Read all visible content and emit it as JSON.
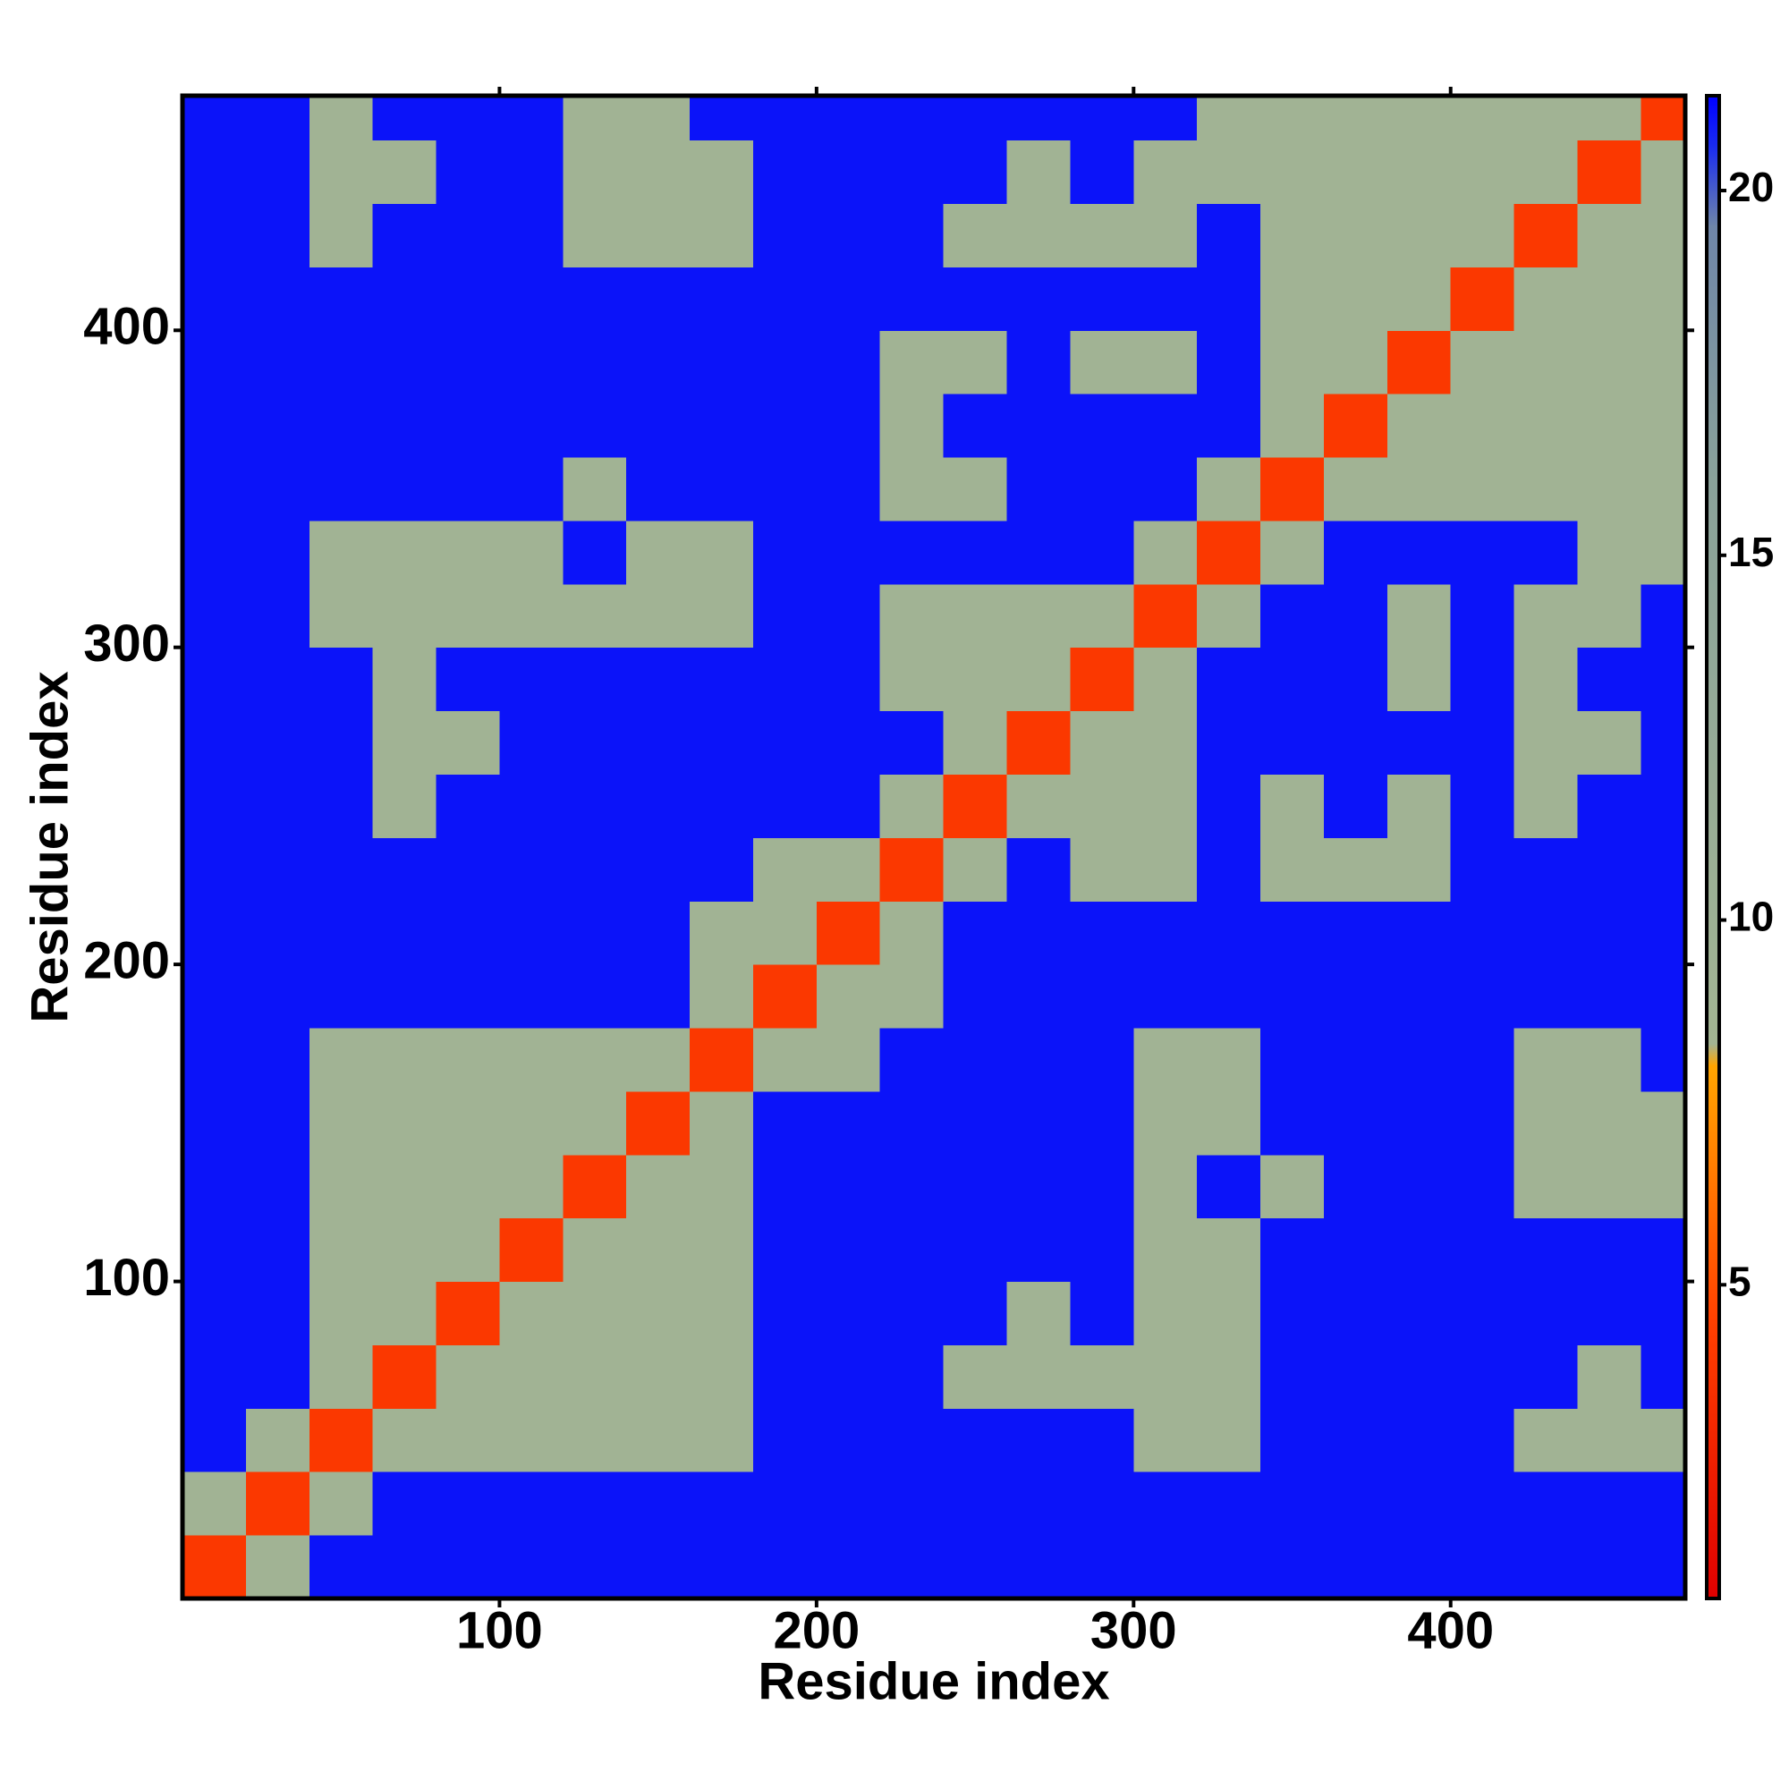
{
  "chart_data": {
    "type": "heatmap",
    "xlabel": "Residue index",
    "ylabel": "Residue index",
    "x_edges": [
      0,
      20,
      40,
      60,
      80,
      100,
      120,
      140,
      160,
      180,
      200,
      220,
      240,
      260,
      280,
      300,
      320,
      340,
      360,
      380,
      400,
      420,
      440,
      460,
      474
    ],
    "y_edges": [
      0,
      20,
      40,
      60,
      80,
      100,
      120,
      140,
      160,
      180,
      200,
      220,
      240,
      260,
      280,
      300,
      320,
      340,
      360,
      380,
      400,
      420,
      440,
      460,
      474
    ],
    "values": [
      [
        4,
        9,
        21,
        21,
        21,
        21,
        21,
        21,
        21,
        21,
        21,
        21,
        21,
        21,
        21,
        21,
        21,
        21,
        21,
        21,
        21,
        21,
        21,
        21
      ],
      [
        9,
        4,
        9,
        21,
        21,
        21,
        21,
        21,
        21,
        21,
        21,
        21,
        21,
        21,
        21,
        21,
        21,
        21,
        21,
        21,
        21,
        21,
        21,
        21
      ],
      [
        21,
        9,
        4,
        9,
        9,
        9,
        9,
        9,
        9,
        21,
        21,
        21,
        21,
        21,
        21,
        9,
        9,
        21,
        21,
        21,
        21,
        9,
        9,
        9
      ],
      [
        21,
        21,
        9,
        4,
        9,
        9,
        9,
        9,
        9,
        21,
        21,
        21,
        9,
        9,
        9,
        9,
        9,
        21,
        21,
        21,
        21,
        21,
        9,
        21
      ],
      [
        21,
        21,
        9,
        9,
        4,
        9,
        9,
        9,
        9,
        21,
        21,
        21,
        21,
        9,
        21,
        9,
        9,
        21,
        21,
        21,
        21,
        21,
        21,
        21
      ],
      [
        21,
        21,
        9,
        9,
        9,
        4,
        9,
        9,
        9,
        21,
        21,
        21,
        21,
        21,
        21,
        9,
        9,
        21,
        21,
        21,
        21,
        21,
        21,
        21
      ],
      [
        21,
        21,
        9,
        9,
        9,
        9,
        4,
        9,
        9,
        21,
        21,
        21,
        21,
        21,
        21,
        9,
        21,
        9,
        21,
        21,
        21,
        9,
        9,
        9
      ],
      [
        21,
        21,
        9,
        9,
        9,
        9,
        9,
        4,
        9,
        21,
        21,
        21,
        21,
        21,
        21,
        9,
        9,
        21,
        21,
        21,
        21,
        9,
        9,
        9
      ],
      [
        21,
        21,
        9,
        9,
        9,
        9,
        9,
        9,
        4,
        9,
        9,
        21,
        21,
        21,
        21,
        9,
        9,
        21,
        21,
        21,
        21,
        9,
        9,
        21
      ],
      [
        21,
        21,
        21,
        21,
        21,
        21,
        21,
        21,
        9,
        4,
        9,
        9,
        21,
        21,
        21,
        21,
        21,
        21,
        21,
        21,
        21,
        21,
        21,
        21
      ],
      [
        21,
        21,
        21,
        21,
        21,
        21,
        21,
        21,
        9,
        9,
        4,
        9,
        21,
        21,
        21,
        21,
        21,
        21,
        21,
        21,
        21,
        21,
        21,
        21
      ],
      [
        21,
        21,
        21,
        21,
        21,
        21,
        21,
        21,
        21,
        9,
        9,
        4,
        9,
        21,
        9,
        9,
        21,
        9,
        9,
        9,
        21,
        21,
        21,
        21
      ],
      [
        21,
        21,
        21,
        9,
        21,
        21,
        21,
        21,
        21,
        21,
        21,
        9,
        4,
        9,
        9,
        9,
        21,
        9,
        21,
        9,
        21,
        9,
        21,
        21
      ],
      [
        21,
        21,
        21,
        9,
        9,
        21,
        21,
        21,
        21,
        21,
        21,
        21,
        9,
        4,
        9,
        9,
        21,
        21,
        21,
        21,
        21,
        9,
        9,
        21
      ],
      [
        21,
        21,
        21,
        9,
        21,
        21,
        21,
        21,
        21,
        21,
        21,
        9,
        9,
        9,
        4,
        9,
        21,
        21,
        21,
        9,
        21,
        9,
        21,
        21
      ],
      [
        21,
        21,
        9,
        9,
        9,
        9,
        9,
        9,
        9,
        21,
        21,
        9,
        9,
        9,
        9,
        4,
        9,
        21,
        21,
        9,
        21,
        9,
        9,
        21
      ],
      [
        21,
        21,
        9,
        9,
        9,
        9,
        21,
        9,
        9,
        21,
        21,
        21,
        21,
        21,
        21,
        9,
        4,
        9,
        21,
        21,
        21,
        21,
        9,
        9
      ],
      [
        21,
        21,
        21,
        21,
        21,
        21,
        9,
        21,
        21,
        21,
        21,
        9,
        9,
        21,
        21,
        21,
        9,
        4,
        9,
        9,
        9,
        9,
        9,
        9
      ],
      [
        21,
        21,
        21,
        21,
        21,
        21,
        21,
        21,
        21,
        21,
        21,
        9,
        21,
        21,
        21,
        21,
        21,
        9,
        4,
        9,
        9,
        9,
        9,
        9
      ],
      [
        21,
        21,
        21,
        21,
        21,
        21,
        21,
        21,
        21,
        21,
        21,
        9,
        9,
        21,
        9,
        9,
        21,
        9,
        9,
        4,
        9,
        9,
        9,
        9
      ],
      [
        21,
        21,
        21,
        21,
        21,
        21,
        21,
        21,
        21,
        21,
        21,
        21,
        21,
        21,
        21,
        21,
        21,
        9,
        9,
        9,
        4,
        9,
        9,
        9
      ],
      [
        21,
        21,
        9,
        21,
        21,
        21,
        9,
        9,
        9,
        21,
        21,
        21,
        9,
        9,
        9,
        9,
        21,
        9,
        9,
        9,
        9,
        4,
        9,
        9
      ],
      [
        21,
        21,
        9,
        9,
        21,
        21,
        9,
        9,
        9,
        21,
        21,
        21,
        21,
        9,
        21,
        9,
        9,
        9,
        9,
        9,
        9,
        9,
        4,
        9
      ],
      [
        21,
        21,
        9,
        21,
        21,
        21,
        9,
        9,
        21,
        21,
        21,
        21,
        21,
        21,
        21,
        21,
        9,
        9,
        9,
        9,
        9,
        9,
        9,
        4
      ]
    ],
    "xlim": [
      0,
      474
    ],
    "ylim": [
      0,
      474
    ],
    "xticks": [
      100,
      200,
      300,
      400
    ],
    "yticks": [
      100,
      200,
      300,
      400
    ],
    "colorscale": [
      [
        0.7,
        "#e00000"
      ],
      [
        4.5,
        "#ff4000"
      ],
      [
        8.0,
        "#ffa500"
      ],
      [
        8.3,
        "#a3b593"
      ],
      [
        16,
        "#8aa29a"
      ],
      [
        19.5,
        "#6f86a8"
      ],
      [
        20.6,
        "#1a2cf0"
      ],
      [
        21.3,
        "#0000ff"
      ]
    ],
    "clim": [
      0.7,
      21.3
    ],
    "cticks": [
      5,
      10,
      15,
      20
    ]
  }
}
